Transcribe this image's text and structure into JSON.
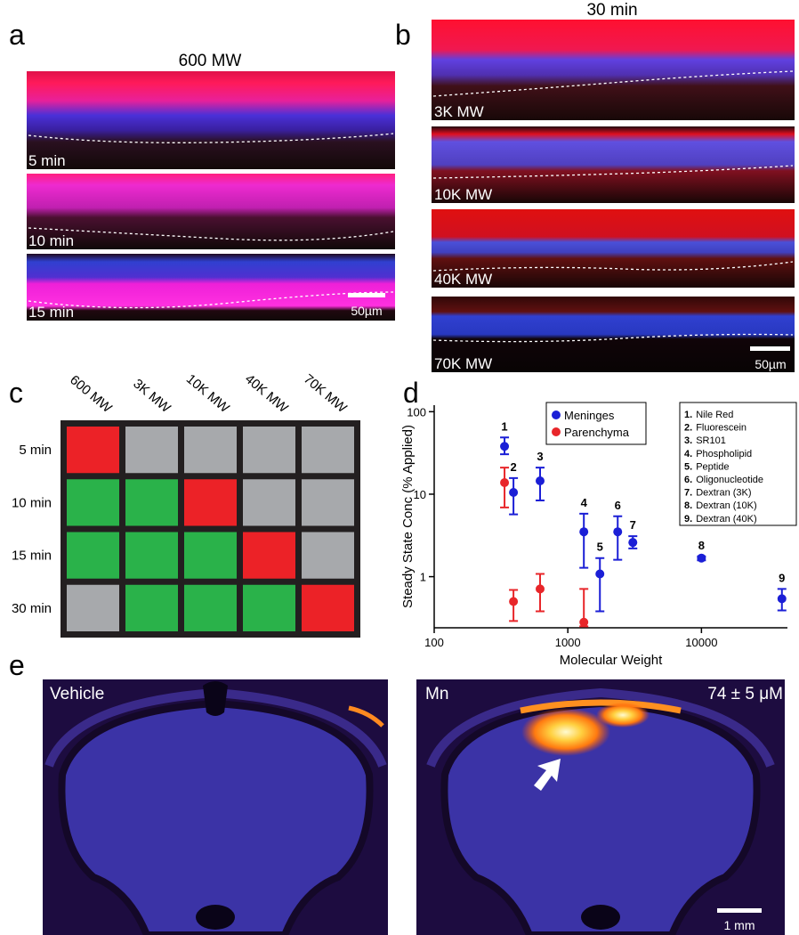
{
  "panels": {
    "a": {
      "letter": "a",
      "title": "600 MW",
      "images": [
        {
          "label": "5 min"
        },
        {
          "label": "10 min"
        },
        {
          "label": "15 min"
        }
      ],
      "scale_bar": "50µm"
    },
    "b": {
      "letter": "b",
      "title": "30 min",
      "images": [
        {
          "label": "3K MW"
        },
        {
          "label": "10K MW"
        },
        {
          "label": "40K MW"
        },
        {
          "label": "70K MW"
        }
      ],
      "scale_bar": "50µm"
    },
    "c": {
      "letter": "c",
      "columns": [
        "600 MW",
        "3K MW",
        "10K MW",
        "40K MW",
        "70K MW"
      ],
      "rows": [
        "5 min",
        "10 min",
        "15 min",
        "30 min"
      ],
      "cells": [
        [
          "#ec2227",
          "#a7a9ac",
          "#a7a9ac",
          "#a7a9ac",
          "#a7a9ac"
        ],
        [
          "#2ab24a",
          "#2ab24a",
          "#ec2227",
          "#a7a9ac",
          "#a7a9ac"
        ],
        [
          "#2ab24a",
          "#2ab24a",
          "#2ab24a",
          "#ec2227",
          "#a7a9ac"
        ],
        [
          "#a7a9ac",
          "#2ab24a",
          "#2ab24a",
          "#2ab24a",
          "#ec2227"
        ]
      ]
    },
    "e": {
      "letter": "e",
      "images": [
        {
          "label": "Vehicle"
        },
        {
          "label": "Mn",
          "annotation": "74 ± 5 μM",
          "scale_bar": "1 mm"
        }
      ]
    }
  },
  "chart_data": {
    "panel_label": "d",
    "type": "scatter",
    "x_label": "Molecular Weight",
    "y_label": "Steady State Conc (% Applied)",
    "log_x": true,
    "log_y": true,
    "xlim": [
      100,
      44000
    ],
    "ylim": [
      0.24,
      120
    ],
    "xticks": [
      100,
      1000,
      10000
    ],
    "yticks": [
      1,
      10,
      100
    ],
    "series": [
      {
        "name": "Meninges",
        "color": "#1b1fd6",
        "x": [
          336,
          392,
          620,
          1318,
          1738,
          2362,
          3066,
          10000,
          40000
        ],
        "values": [
          38,
          10.5,
          14.5,
          3.5,
          1.08,
          3.5,
          2.6,
          1.68,
          0.54
        ],
        "lower": [
          30.5,
          5.7,
          8.4,
          1.28,
          0.38,
          1.6,
          2.2,
          1.58,
          0.39
        ],
        "upper": [
          48.7,
          15.7,
          21,
          5.8,
          1.68,
          5.4,
          3.1,
          1.76,
          0.71
        ],
        "point_labels": [
          "1",
          "2",
          "3",
          "4",
          "5",
          "6",
          "7",
          "8",
          "9"
        ]
      },
      {
        "name": "Parenchyma",
        "color": "#e8262a",
        "x": [
          336,
          392,
          620,
          1318
        ],
        "values": [
          13.8,
          0.5,
          0.71,
          0.28
        ],
        "lower": [
          6.9,
          0.29,
          0.38,
          0.25
        ],
        "upper": [
          21,
          0.69,
          1.08,
          0.71
        ]
      }
    ],
    "key": [
      {
        "number": "1.",
        "name": "Nile Red"
      },
      {
        "number": "2.",
        "name": "Fluorescein"
      },
      {
        "number": "3.",
        "name": "SR101"
      },
      {
        "number": "4.",
        "name": "Phospholipid"
      },
      {
        "number": "5.",
        "name": "Peptide"
      },
      {
        "number": "6.",
        "name": "Oligonucleotide"
      },
      {
        "number": "7.",
        "name": "Dextran (3K)"
      },
      {
        "number": "8.",
        "name": "Dextran (10K)"
      },
      {
        "number": "9.",
        "name": "Dextran (40K)"
      }
    ]
  }
}
